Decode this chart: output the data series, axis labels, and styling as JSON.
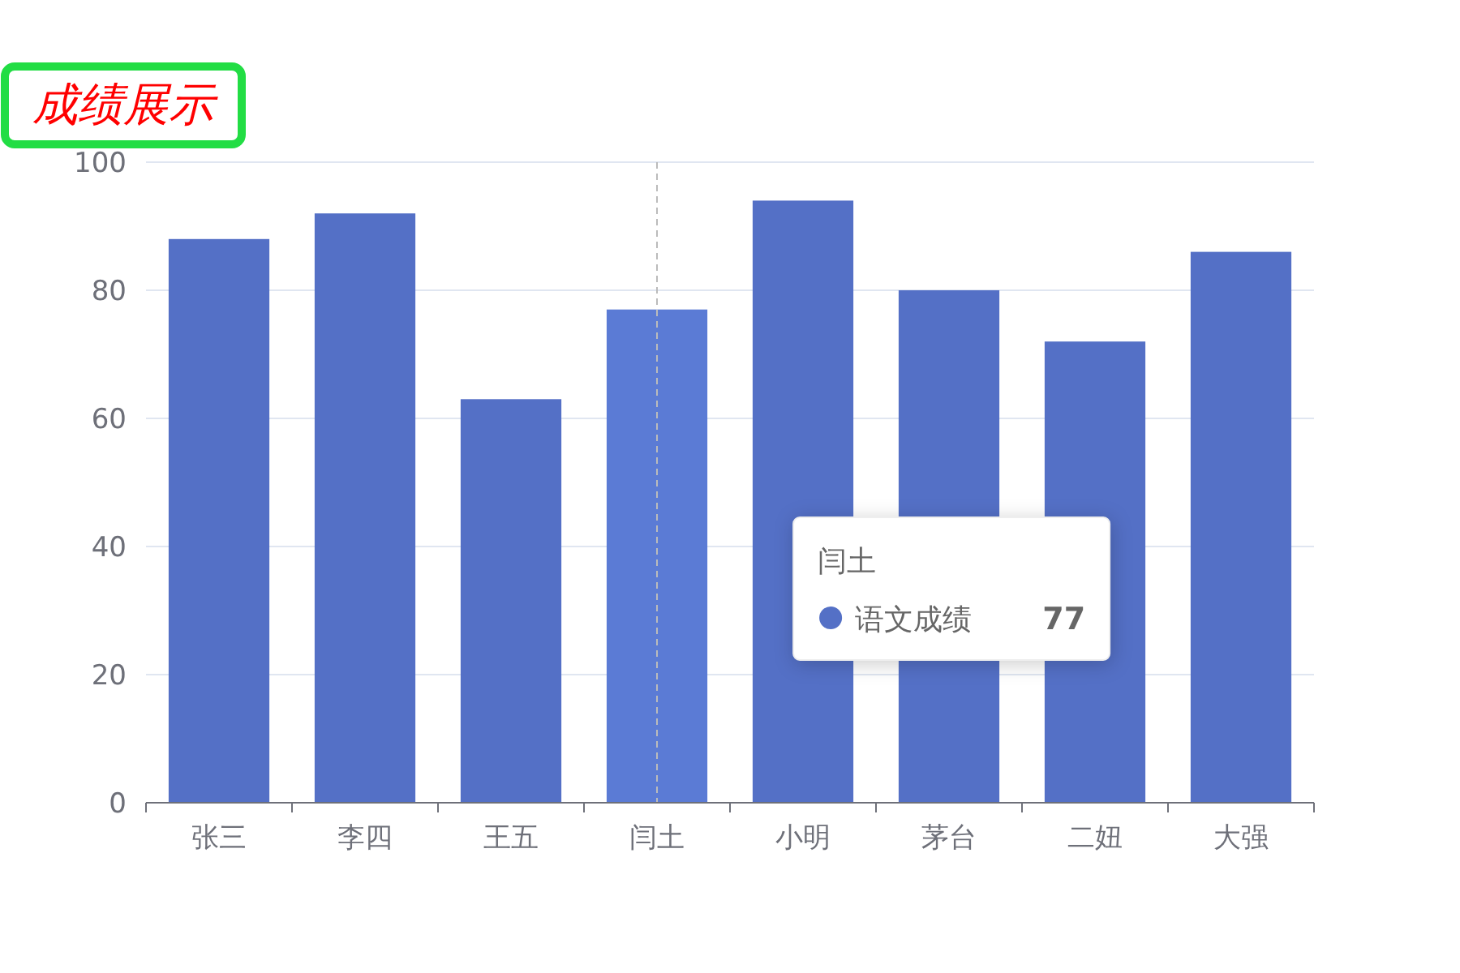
{
  "chart_data": {
    "type": "bar",
    "title": "成绩展示",
    "categories": [
      "张三",
      "李四",
      "王五",
      "闫土",
      "小明",
      "茅台",
      "二妞",
      "大强"
    ],
    "series": [
      {
        "name": "语文成绩",
        "color": "#5470c6",
        "colors": [
          "#5470c6",
          "#5470c6",
          "#5470c6",
          "#5b7bd5",
          "#5470c6",
          "#5470c6",
          "#5470c6",
          "#5470c6"
        ],
        "values": [
          88,
          92,
          63,
          77,
          94,
          80,
          72,
          86
        ]
      }
    ],
    "ylim": [
      0,
      100
    ],
    "yticks": [
      0,
      20,
      40,
      60,
      80,
      100
    ],
    "grid": "y",
    "ref_lines": [
      {
        "axis": "x",
        "value": "闫土",
        "color": "#bbbbbb",
        "line_style": "dashed"
      }
    ],
    "annotations": [
      "闫土",
      "77"
    ]
  }
}
